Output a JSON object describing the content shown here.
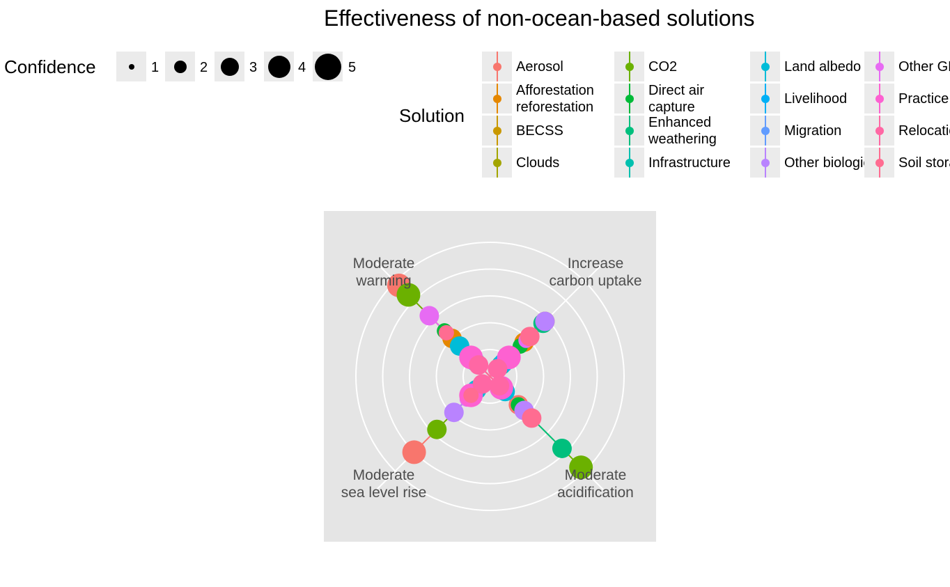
{
  "title": "Effectiveness of non-ocean-based solutions",
  "confidence_legend": {
    "title": "Confidence",
    "levels": [
      "1",
      "2",
      "3",
      "4",
      "5"
    ]
  },
  "solution_legend": {
    "title": "Solution",
    "items": [
      {
        "label": "Aerosol",
        "color": "#F8766D"
      },
      {
        "label": "Afforestation reforestation",
        "color": "#E58700"
      },
      {
        "label": "BECSS",
        "color": "#C99800"
      },
      {
        "label": "Clouds",
        "color": "#A3A500"
      },
      {
        "label": "CO2",
        "color": "#6BB100"
      },
      {
        "label": "Direct air capture",
        "color": "#00BA38"
      },
      {
        "label": "Enhanced weathering",
        "color": "#00BF7D"
      },
      {
        "label": "Infrastructure",
        "color": "#00C0AF"
      },
      {
        "label": "Land albedo",
        "color": "#00BCD8"
      },
      {
        "label": "Livelihood",
        "color": "#00B0F6"
      },
      {
        "label": "Migration",
        "color": "#619CFF"
      },
      {
        "label": "Other biological",
        "color": "#B983FF"
      },
      {
        "label": "Other GHG",
        "color": "#E76BF3"
      },
      {
        "label": "Practice",
        "color": "#FD61D1"
      },
      {
        "label": "Relocation",
        "color": "#FF67A4"
      },
      {
        "label": "Soil storage",
        "color": "#FF6C91"
      }
    ]
  },
  "chart_data": {
    "type": "radar",
    "title": "Effectiveness of non-ocean-based solutions",
    "axes": [
      "Increase carbon uptake",
      "Moderate warming",
      "Moderate sea level rise",
      "Moderate acidification"
    ],
    "axis_labels": [
      {
        "line1": "Increase",
        "line2": "carbon uptake"
      },
      {
        "line1": "Moderate",
        "line2": "warming"
      },
      {
        "line1": "Moderate",
        "line2": "sea level rise"
      },
      {
        "line1": "Moderate",
        "line2": "acidification"
      }
    ],
    "rings": 5,
    "series": [
      {
        "name": "Aerosol",
        "color": "#F8766D",
        "values": [
          0.5,
          4.8,
          4.0,
          1.5
        ],
        "confidence": [
          3,
          5,
          5,
          4
        ]
      },
      {
        "name": "Afforestation reforestation",
        "color": "#E58700",
        "values": [
          1.8,
          2.0,
          0.9,
          0.5
        ],
        "confidence": [
          4,
          4,
          4,
          3
        ]
      },
      {
        "name": "BECSS",
        "color": "#C99800",
        "values": [
          2.9,
          1.0,
          0.5,
          0.6
        ],
        "confidence": [
          4,
          3,
          3,
          3
        ]
      },
      {
        "name": "Clouds",
        "color": "#A3A500",
        "values": [
          0.3,
          0.6,
          0.4,
          0.5
        ],
        "confidence": [
          2,
          3,
          3,
          3
        ]
      },
      {
        "name": "CO2",
        "color": "#6BB100",
        "values": [
          1.2,
          4.3,
          2.8,
          4.8
        ],
        "confidence": [
          3,
          5,
          4,
          5
        ]
      },
      {
        "name": "Direct air capture",
        "color": "#00BA38",
        "values": [
          1.6,
          2.4,
          1.9,
          1.5
        ],
        "confidence": [
          3,
          3,
          3,
          3
        ]
      },
      {
        "name": "Enhanced weathering",
        "color": "#00BF7D",
        "values": [
          2.8,
          1.5,
          0.9,
          3.8
        ],
        "confidence": [
          4,
          3,
          3,
          4
        ]
      },
      {
        "name": "Infrastructure",
        "color": "#00C0AF",
        "values": [
          0.6,
          0.8,
          0.7,
          0.6
        ],
        "confidence": [
          4,
          4,
          4,
          4
        ]
      },
      {
        "name": "Land albedo",
        "color": "#00BCD8",
        "values": [
          0.7,
          1.6,
          0.7,
          0.8
        ],
        "confidence": [
          4,
          4,
          4,
          4
        ]
      },
      {
        "name": "Livelihood",
        "color": "#00B0F6",
        "values": [
          0.8,
          0.8,
          0.9,
          0.7
        ],
        "confidence": [
          4,
          4,
          4,
          4
        ]
      },
      {
        "name": "Migration",
        "color": "#619CFF",
        "values": [
          0.5,
          0.6,
          0.5,
          0.6
        ],
        "confidence": [
          3,
          3,
          3,
          3
        ]
      },
      {
        "name": "Other biological",
        "color": "#B983FF",
        "values": [
          2.9,
          1.0,
          1.9,
          1.8
        ],
        "confidence": [
          4,
          3,
          4,
          4
        ]
      },
      {
        "name": "Other GHG",
        "color": "#E76BF3",
        "values": [
          1.9,
          3.2,
          1.2,
          0.6
        ],
        "confidence": [
          3,
          4,
          3,
          3
        ]
      },
      {
        "name": "Practice",
        "color": "#FD61D1",
        "values": [
          1.0,
          1.0,
          1.0,
          0.6
        ],
        "confidence": [
          5,
          5,
          5,
          5
        ]
      },
      {
        "name": "Relocation",
        "color": "#FF67A4",
        "values": [
          0.4,
          0.6,
          0.4,
          0.5
        ],
        "confidence": [
          4,
          4,
          4,
          4
        ]
      },
      {
        "name": "Soil storage",
        "color": "#FF6C91",
        "values": [
          2.1,
          2.3,
          1.0,
          2.2
        ],
        "confidence": [
          4,
          3,
          3,
          4
        ]
      }
    ]
  }
}
